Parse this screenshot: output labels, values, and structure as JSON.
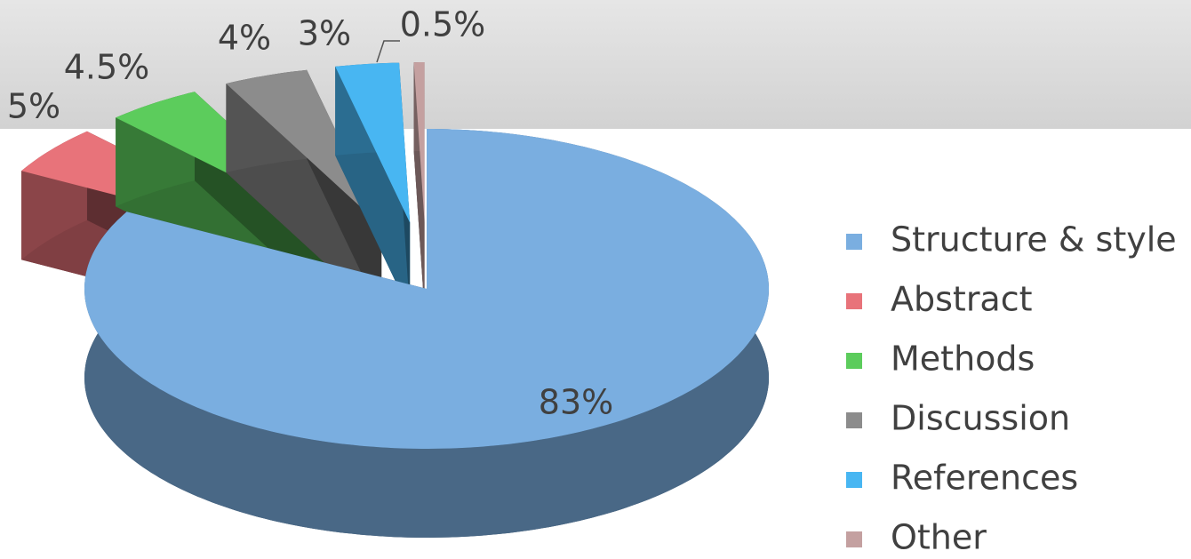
{
  "chart_data": {
    "type": "pie",
    "categories": [
      "Structure & style",
      "Abstract",
      "Methods",
      "Discussion",
      "References",
      "Other"
    ],
    "values": [
      83,
      5,
      4.5,
      4,
      3,
      0.5
    ],
    "value_labels": [
      "83%",
      "5%",
      "4.5%",
      "4%",
      "3%",
      "0.5%"
    ],
    "colors": [
      "#7aaee0",
      "#e8737a",
      "#5ccc5c",
      "#8c8c8c",
      "#48b6f2",
      "#c4a0a0"
    ],
    "legend": "right"
  }
}
